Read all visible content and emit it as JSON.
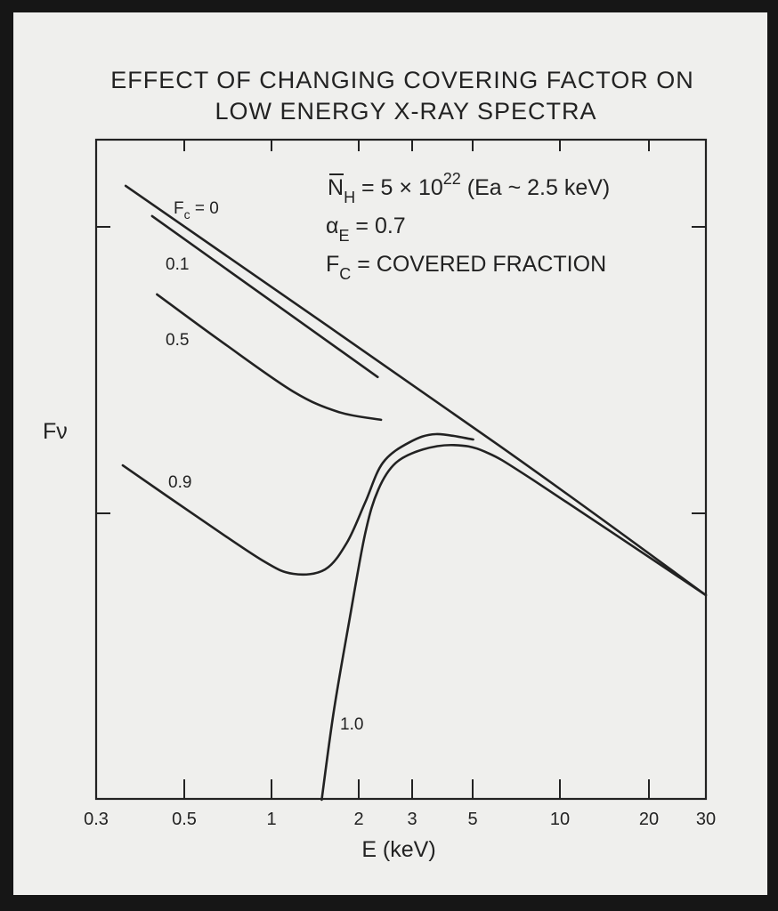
{
  "chart_data": {
    "type": "line",
    "title": [
      "EFFECT OF CHANGING COVERING FACTOR ON",
      "LOW ENERGY X-RAY SPECTRA"
    ],
    "xlabel": "E (keV)",
    "ylabel": "Fν",
    "xscale": "log",
    "yscale": "log",
    "xlim": [
      0.3,
      30
    ],
    "ylim": [
      0.1,
      20
    ],
    "xticks": [
      0.3,
      0.5,
      1,
      2,
      3,
      5,
      10,
      20,
      30
    ],
    "xtick_labels": [
      "0.3",
      "0.5",
      "1",
      "2",
      "3",
      "5",
      "10",
      "20",
      "30"
    ],
    "yticks": [
      1,
      10
    ],
    "grid": false,
    "annotations": {
      "nh": {
        "base": "N",
        "sub": "H",
        "text1": " = 5 × 10",
        "sup": "22",
        "text2": " (Ea ~ 2.5 keV)"
      },
      "alpha": {
        "base": "α",
        "sub": "E",
        "text": " = 0.7"
      },
      "fc": {
        "base": "F",
        "sub": "C",
        "text": " = COVERED FRACTION"
      }
    },
    "series": [
      {
        "name": "Fc = 0",
        "label_base": "F",
        "label_sub": "c",
        "label_text": " = 0",
        "x": [
          0.356,
          6.14,
          30
        ],
        "y": [
          13.9,
          1.73,
          0.518
        ]
      },
      {
        "name": "0.1",
        "label": "0.1",
        "x": [
          0.415,
          2.31
        ],
        "y": [
          10.9,
          2.99
        ]
      },
      {
        "name": "0.5",
        "label": "0.5",
        "x": [
          0.427,
          0.678,
          1.19,
          1.7,
          2.37
        ],
        "y": [
          5.81,
          3.95,
          2.66,
          2.26,
          2.12
        ]
      },
      {
        "name": "0.9",
        "label": "0.9",
        "x": [
          0.35,
          0.548,
          0.93,
          1.19,
          1.53,
          1.82,
          2.1,
          2.4,
          2.94,
          3.67,
          5.02
        ],
        "y": [
          1.47,
          0.98,
          0.685,
          0.615,
          0.637,
          0.79,
          1.09,
          1.5,
          1.77,
          1.89,
          1.81
        ]
      },
      {
        "name": "1.0",
        "label": "1.0",
        "x": [
          1.49,
          1.64,
          1.85,
          2.1,
          2.32,
          2.65,
          3.28,
          4.27,
          5.52,
          8.15,
          30
        ],
        "y": [
          0.1,
          0.203,
          0.415,
          0.849,
          1.21,
          1.5,
          1.67,
          1.73,
          1.64,
          1.3,
          0.518
        ]
      }
    ]
  }
}
